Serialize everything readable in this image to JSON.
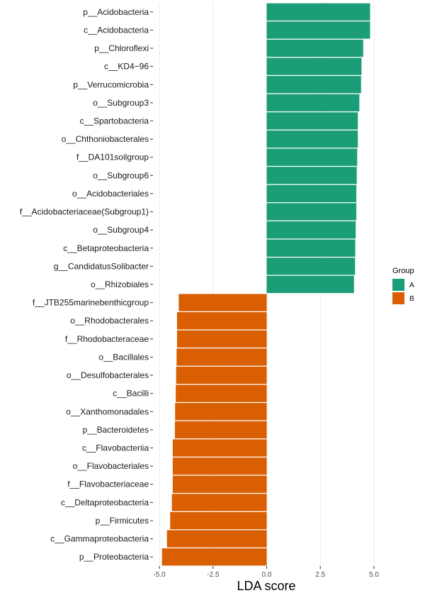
{
  "chart_data": {
    "type": "bar",
    "orientation": "horizontal",
    "xlabel": "LDA score",
    "ylabel": "",
    "xlim": [
      -5.3,
      5.3
    ],
    "xticks": [
      -5.0,
      -2.5,
      0.0,
      2.5,
      5.0
    ],
    "xtick_labels": [
      "-5.0",
      "-2.5",
      "0.0",
      "2.5",
      "5.0"
    ],
    "grid": true,
    "legend": {
      "title": "Group",
      "placement": "right",
      "entries": [
        {
          "label": "A",
          "color": "#1b9e77"
        },
        {
          "label": "B",
          "color": "#d95f02"
        }
      ]
    },
    "bars": [
      {
        "label": "p__Acidobacteria",
        "value": 4.82,
        "group": "A"
      },
      {
        "label": "c__Acidobacteria",
        "value": 4.82,
        "group": "A"
      },
      {
        "label": "p__Chloroflexi",
        "value": 4.5,
        "group": "A"
      },
      {
        "label": "c__KD4−96",
        "value": 4.42,
        "group": "A"
      },
      {
        "label": "p__Verrucomicrobia",
        "value": 4.4,
        "group": "A"
      },
      {
        "label": "o__Subgroup3",
        "value": 4.32,
        "group": "A"
      },
      {
        "label": "c__Spartobacteria",
        "value": 4.25,
        "group": "A"
      },
      {
        "label": "o__Chthoniobacterales",
        "value": 4.25,
        "group": "A"
      },
      {
        "label": "f__DA101soilgroup",
        "value": 4.22,
        "group": "A"
      },
      {
        "label": "o__Subgroup6",
        "value": 4.2,
        "group": "A"
      },
      {
        "label": "o__Acidobacteriales",
        "value": 4.18,
        "group": "A"
      },
      {
        "label": "f__Acidobacteriaceae(Subgroup1)",
        "value": 4.18,
        "group": "A"
      },
      {
        "label": "o__Subgroup4",
        "value": 4.15,
        "group": "A"
      },
      {
        "label": "c__Betaproteobacteria",
        "value": 4.13,
        "group": "A"
      },
      {
        "label": "g__CandidatusSolibacter",
        "value": 4.12,
        "group": "A"
      },
      {
        "label": "o__Rhizobiales",
        "value": 4.07,
        "group": "A"
      },
      {
        "label": "f__JTB255marinebenthicgroup",
        "value": -4.1,
        "group": "B"
      },
      {
        "label": "o__Rhodobacterales",
        "value": -4.18,
        "group": "B"
      },
      {
        "label": "f__Rhodobacteraceae",
        "value": -4.18,
        "group": "B"
      },
      {
        "label": "o__Bacillales",
        "value": -4.2,
        "group": "B"
      },
      {
        "label": "o__Desulfobacterales",
        "value": -4.22,
        "group": "B"
      },
      {
        "label": "c__Bacilli",
        "value": -4.24,
        "group": "B"
      },
      {
        "label": "o__Xanthomonadales",
        "value": -4.27,
        "group": "B"
      },
      {
        "label": "p__Bacteroidetes",
        "value": -4.28,
        "group": "B"
      },
      {
        "label": "c__Flavobacteriia",
        "value": -4.38,
        "group": "B"
      },
      {
        "label": "o__Flavobacteriales",
        "value": -4.38,
        "group": "B"
      },
      {
        "label": "f__Flavobacteriaceae",
        "value": -4.38,
        "group": "B"
      },
      {
        "label": "c__Deltaproteobacteria",
        "value": -4.42,
        "group": "B"
      },
      {
        "label": "p__Firmicutes",
        "value": -4.5,
        "group": "B"
      },
      {
        "label": "c__Gammaproteobacteria",
        "value": -4.65,
        "group": "B"
      },
      {
        "label": "p__Proteobacteria",
        "value": -4.88,
        "group": "B"
      }
    ]
  }
}
